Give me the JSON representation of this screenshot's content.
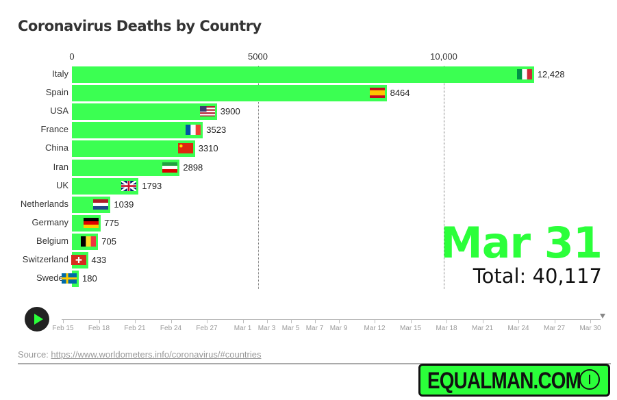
{
  "chart_data": {
    "type": "bar",
    "orientation": "horizontal",
    "title": "Coronavirus Deaths by Country",
    "categories": [
      "Italy",
      "Spain",
      "USA",
      "France",
      "China",
      "Iran",
      "UK",
      "Netherlands",
      "Germany",
      "Belgium",
      "Switzerland",
      "Sweden"
    ],
    "values": [
      12428,
      8464,
      3900,
      3523,
      3310,
      2898,
      1793,
      1039,
      775,
      705,
      433,
      180
    ],
    "value_labels": [
      "12,428",
      "8464",
      "3900",
      "3523",
      "3310",
      "2898",
      "1793",
      "1039",
      "775",
      "705",
      "433",
      "180"
    ],
    "flags": [
      "italy-flag",
      "spain-flag",
      "usa-flag",
      "france-flag",
      "china-flag",
      "iran-flag",
      "uk-flag",
      "netherlands-flag",
      "germany-flag",
      "belgium-flag",
      "switzerland-flag",
      "sweden-flag"
    ],
    "xticks": [
      0,
      5000,
      10000
    ],
    "xtick_labels": [
      "0",
      "5000",
      "10,000"
    ],
    "xlim": [
      0,
      14700
    ],
    "grid": true,
    "bar_color": "#3bff52",
    "date_label": "Mar 31",
    "total_label": "Total: 40,117"
  },
  "timeline": {
    "labels": [
      "Feb 15",
      "Feb 18",
      "Feb 21",
      "Feb 24",
      "Feb 27",
      "Mar 1",
      "Mar 3",
      "Mar 5",
      "Mar 7",
      "Mar 9",
      "Mar 12",
      "Mar 15",
      "Mar 18",
      "Mar 21",
      "Mar 24",
      "Mar 27",
      "Mar 30"
    ],
    "current": "Mar 31",
    "play_icon": "play-icon"
  },
  "source": {
    "prefix": "Source: ",
    "link": "https://www.worldometers.info/coronavirus/#countries"
  },
  "logo": {
    "text": "EQUALMAN.COM"
  },
  "colors": {
    "accent": "#2bff3a"
  }
}
